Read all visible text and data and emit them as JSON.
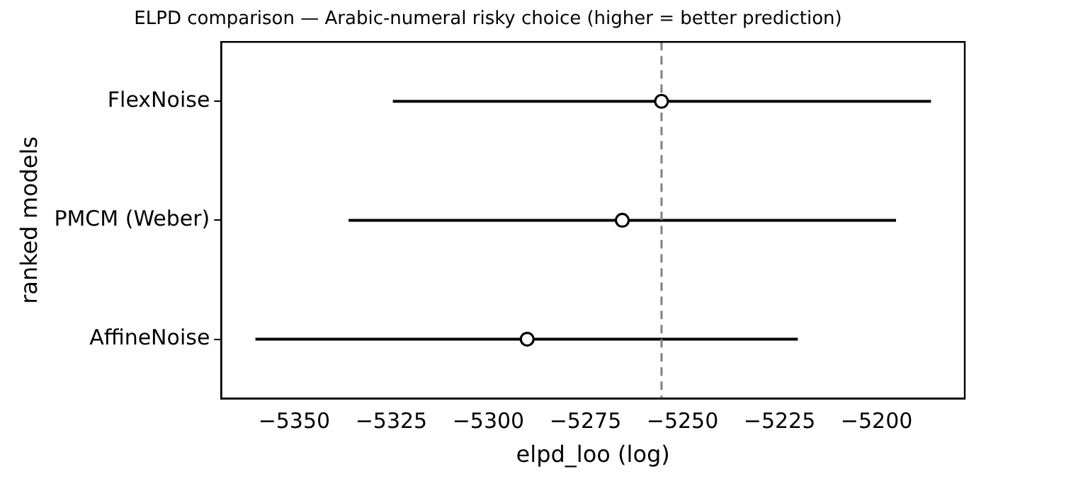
{
  "chart_data": {
    "type": "scatter",
    "orientation": "horizontal",
    "title": "ELPD comparison — Arabic-numeral risky choice (higher = better prediction)",
    "xlabel": "elpd_loo (log)",
    "ylabel": "ranked models",
    "categories": [
      "FlexNoise",
      "PMCM (Weber)",
      "AffineNoise"
    ],
    "values": [
      -5255.4,
      -5265.5,
      -5290
    ],
    "errors": [
      [
        -5324.6,
        -5186
      ],
      [
        -5336,
        -5195
      ],
      [
        -5360,
        -5220.3
      ]
    ],
    "color": "#000000",
    "marker": "circle",
    "grid": false,
    "legend": false,
    "xlim": [
      -5368.8,
      -5177.3
    ],
    "xticks": [
      -5350,
      -5325,
      -5300,
      -5275,
      -5250,
      -5225,
      -5200
    ],
    "ref_lines": [
      {
        "axis": "x",
        "value": -5255.4,
        "color": "#808080",
        "line_style": "dashed"
      }
    ]
  }
}
